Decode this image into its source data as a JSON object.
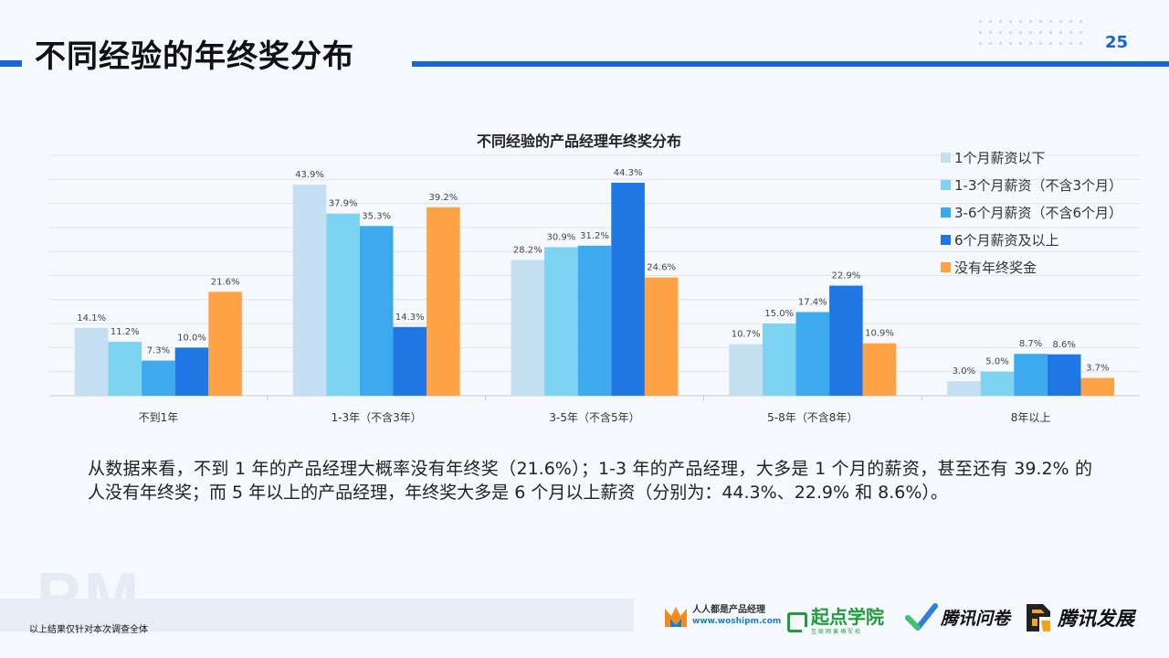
{
  "header": {
    "title": "不同经验的年终奖分布",
    "page_number": "25"
  },
  "chart_data": {
    "type": "bar",
    "title": "不同经验的产品经理年终奖分布",
    "categories": [
      "不到1年",
      "1-3年（不含3年）",
      "3-5年（不含5年）",
      "5-8年（不含8年）",
      "8年以上"
    ],
    "series": [
      {
        "name": "1个月薪资以下",
        "color": "#c5dff2",
        "values": [
          14.1,
          43.9,
          28.2,
          10.7,
          3.0
        ]
      },
      {
        "name": "1-3个月薪资（不含3个月）",
        "color": "#7dd3f2",
        "values": [
          11.2,
          37.9,
          30.9,
          15.0,
          5.0
        ]
      },
      {
        "name": "3-6个月薪资（不含6个月）",
        "color": "#3daaf0",
        "values": [
          7.3,
          35.3,
          31.2,
          17.4,
          8.7
        ]
      },
      {
        "name": "6个月薪资及以上",
        "color": "#1f77e6",
        "values": [
          10.0,
          14.3,
          44.3,
          22.9,
          8.6
        ]
      },
      {
        "name": "没有年终奖金",
        "color": "#ffa245",
        "values": [
          21.6,
          39.2,
          24.6,
          10.9,
          3.7
        ]
      }
    ],
    "value_suffix": "%",
    "ylim": [
      0,
      50
    ],
    "grid": true,
    "legend_position": "right"
  },
  "summary": {
    "text": "从数据来看，不到 1 年的产品经理大概率没有年终奖（21.6%）；1-3 年的产品经理，大多是 1 个月的薪资，甚至还有 39.2% 的人没有年终奖；而 5 年以上的产品经理，年终奖大多是 6 个月以上薪资（分别为：44.3%、22.9% 和 8.6%）。"
  },
  "watermark": "PM",
  "footer": {
    "note": "以上结果仅针对本次调查全体",
    "logos": {
      "woshipm_name": "人人都是产品经理",
      "woshipm_url": "www.woshipm.com",
      "qidian_name": "起点学院",
      "qidian_sub": "互联网黄埔军校",
      "wenjuan_name": "腾讯问卷",
      "fazhan_name": "腾讯发展"
    }
  },
  "colors": {
    "accent": "#1565d8",
    "background": "#f5f8fc"
  }
}
